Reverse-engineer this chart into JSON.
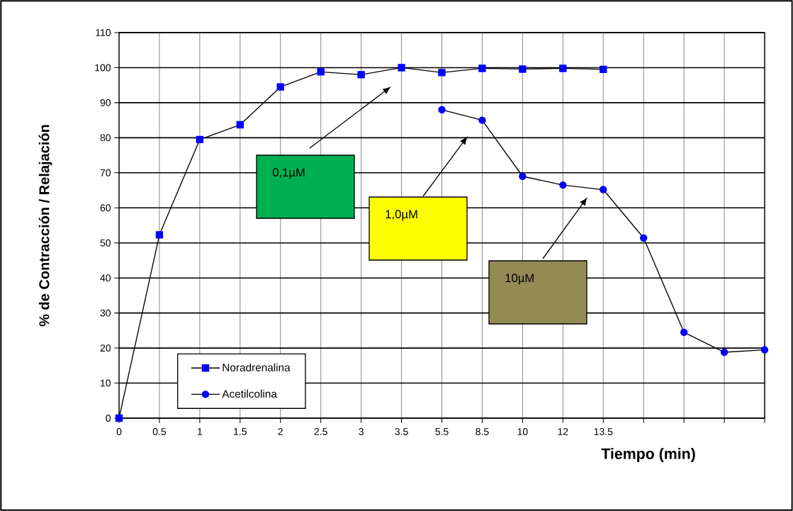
{
  "chart_data": {
    "type": "line",
    "xlabel": "Tiempo (min)",
    "ylabel": "% de Contracción / Relajación",
    "categories": [
      "0",
      "0.5",
      "1",
      "1.5",
      "2",
      "2.5",
      "3",
      "3.5",
      "5.5",
      "8.5",
      "10",
      "12",
      "13.5",
      null,
      null,
      null,
      null
    ],
    "series": [
      {
        "name": "Noradrenalina",
        "color": "#0000ff",
        "marker": "square",
        "values": [
          0,
          52.3,
          79.5,
          83.7,
          94.5,
          98.8,
          98,
          100,
          98.6,
          99.8,
          99.6,
          99.8,
          99.5,
          null,
          null,
          null,
          null
        ]
      },
      {
        "name": "Acetilcolina",
        "color": "#0000ff",
        "marker": "circle",
        "values": [
          null,
          null,
          null,
          null,
          null,
          null,
          null,
          null,
          88,
          85,
          69,
          66.5,
          65.2,
          51.4,
          24.5,
          18.8,
          19.5
        ]
      }
    ],
    "ylim": [
      0,
      110
    ],
    "yticks": [
      0,
      10,
      20,
      30,
      40,
      50,
      60,
      70,
      80,
      90,
      100,
      110
    ],
    "grid": true,
    "legend": "bottom left",
    "annotations": [
      "0,1µM",
      "1,0µM",
      "10µM"
    ]
  }
}
